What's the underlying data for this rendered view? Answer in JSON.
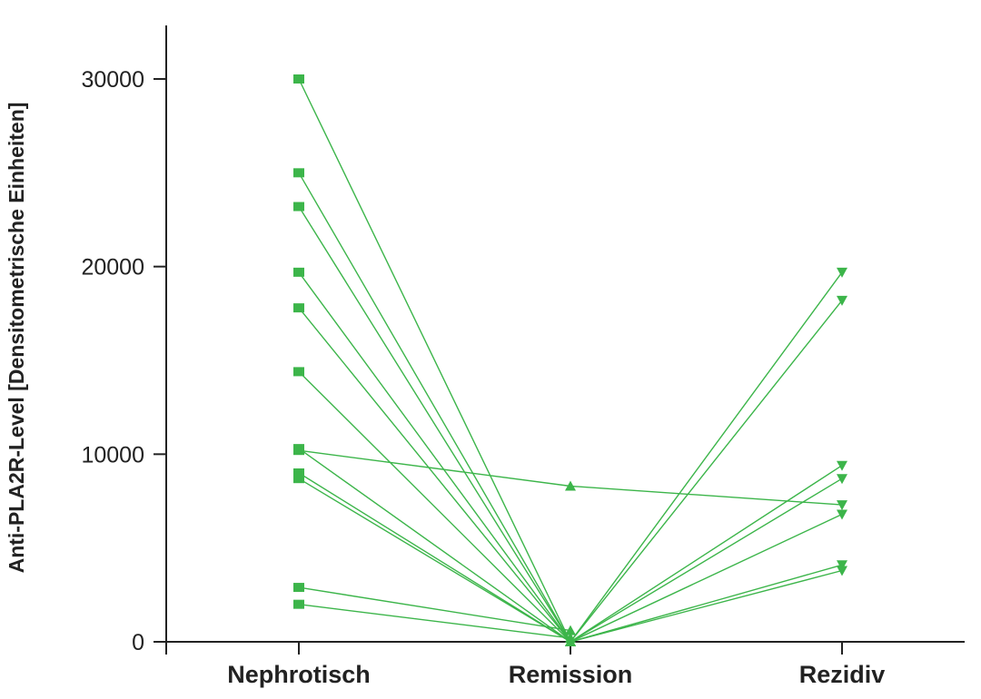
{
  "colors": {
    "series": "#3cb54a",
    "axis": "#222222",
    "text": "#222222"
  },
  "chart_data": {
    "type": "line",
    "title": "",
    "xlabel": "",
    "ylabel": "Anti-PLA2R-Level [Densitometrische Einheiten]",
    "categories": [
      "Nephrotisch",
      "Remission",
      "Rezidiv"
    ],
    "ylim": [
      0,
      33000
    ],
    "yticks": [
      0,
      10000,
      20000,
      30000
    ],
    "ytick_labels": [
      "0",
      "10000",
      "20000",
      "30000"
    ],
    "grid": false,
    "legend": "none",
    "markers": {
      "Nephrotisch": "square",
      "Remission": "triangle-up",
      "Rezidiv": "triangle-down"
    },
    "series": [
      {
        "values": [
          30000,
          0,
          null
        ]
      },
      {
        "values": [
          25000,
          0,
          null
        ]
      },
      {
        "values": [
          23200,
          0,
          19700
        ]
      },
      {
        "values": [
          19700,
          0,
          18200
        ]
      },
      {
        "values": [
          17800,
          0,
          9400
        ]
      },
      {
        "values": [
          14400,
          0,
          8700
        ]
      },
      {
        "values": [
          10200,
          8300,
          7300
        ]
      },
      {
        "values": [
          10300,
          0,
          6800
        ]
      },
      {
        "values": [
          9000,
          0,
          4100
        ]
      },
      {
        "values": [
          8700,
          0,
          3800
        ]
      },
      {
        "values": [
          2900,
          600,
          null
        ]
      },
      {
        "values": [
          2000,
          200,
          null
        ]
      }
    ]
  }
}
